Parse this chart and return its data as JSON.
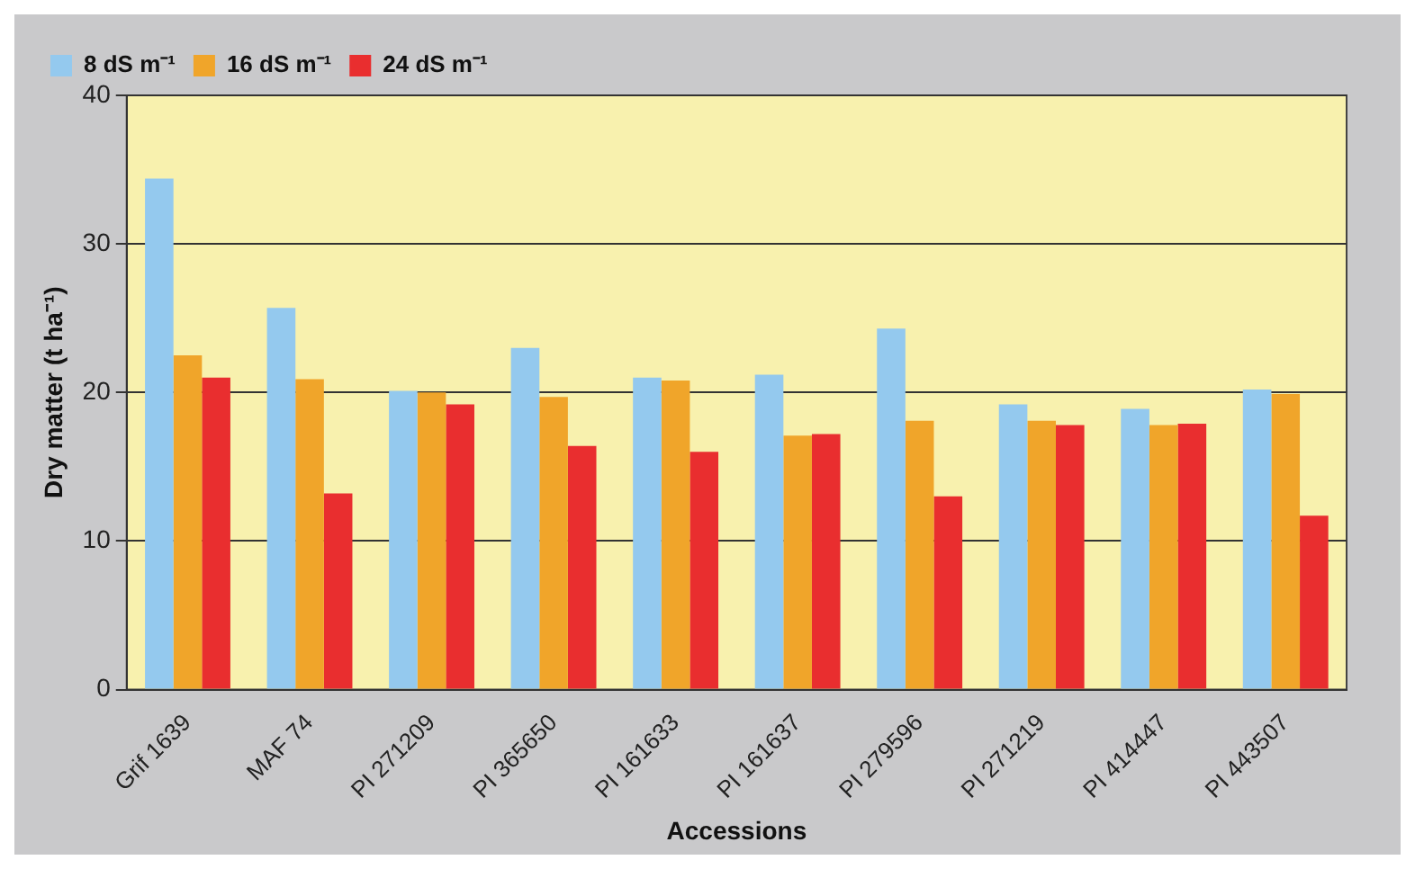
{
  "chart_data": {
    "type": "bar",
    "xlabel": "Accessions",
    "ylabel": "Dry matter (t ha⁻¹)",
    "categories": [
      "Grif 1639",
      "MAF 74",
      "PI 271209",
      "PI 365650",
      "PI 161633",
      "PI 161637",
      "PI 279596",
      "PI 271219",
      "PI 414447",
      "PI 443507"
    ],
    "series": [
      {
        "name": "8 dS m⁻¹",
        "color": "#94c9ee",
        "values": [
          34.4,
          25.7,
          20.1,
          23.0,
          21.0,
          21.2,
          24.3,
          19.2,
          18.9,
          20.2
        ]
      },
      {
        "name": "16 dS m⁻¹",
        "color": "#f0a52a",
        "values": [
          22.5,
          20.9,
          20.0,
          19.7,
          20.8,
          17.1,
          18.1,
          18.1,
          17.8,
          19.9
        ]
      },
      {
        "name": "24 dS m⁻¹",
        "color": "#e92e2f",
        "values": [
          21.0,
          13.2,
          19.2,
          16.4,
          16.0,
          17.2,
          13.0,
          17.8,
          17.9,
          11.7
        ]
      }
    ],
    "ylim": [
      0,
      40
    ],
    "yticks": [
      0,
      10,
      20,
      30,
      40
    ],
    "grid": "y",
    "legend": "top left"
  }
}
